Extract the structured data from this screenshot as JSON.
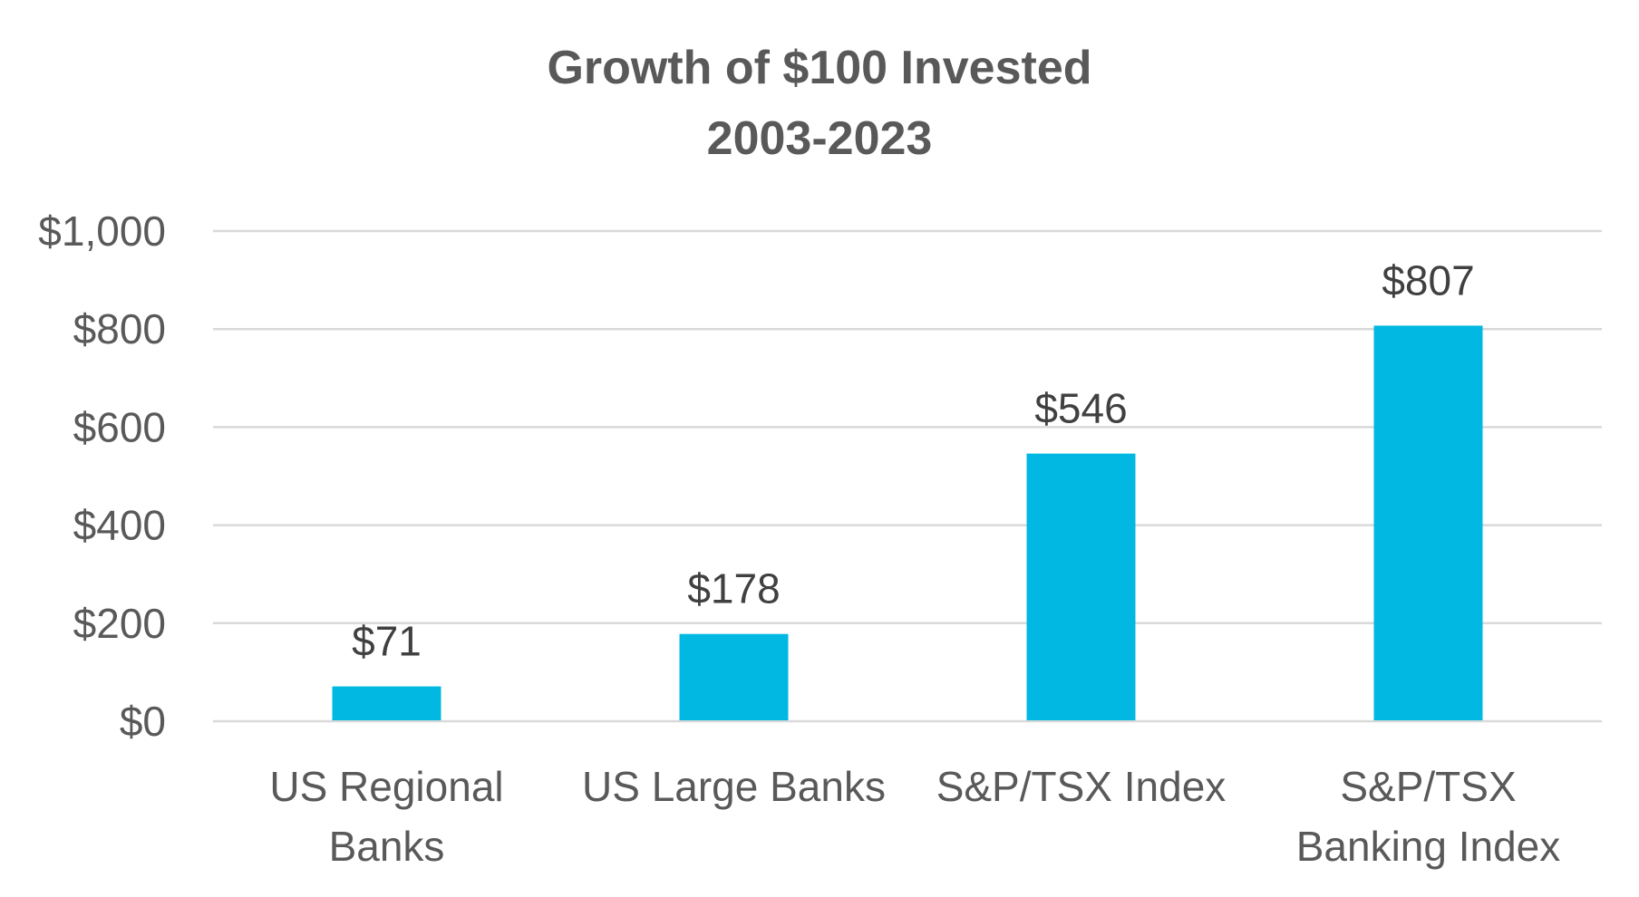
{
  "chart_data": {
    "type": "bar",
    "title": [
      "Growth of $100 Invested",
      "2003-2023"
    ],
    "categories": [
      [
        "US Regional",
        "Banks"
      ],
      [
        "US Large Banks"
      ],
      [
        "S&P/TSX Index"
      ],
      [
        "S&P/TSX",
        "Banking Index"
      ]
    ],
    "values": [
      71,
      178,
      546,
      807
    ],
    "data_labels": [
      "$71",
      "$178",
      "$546",
      "$807"
    ],
    "ylim": [
      0,
      1000
    ],
    "yticks": [
      0,
      200,
      400,
      600,
      800,
      1000
    ],
    "ytick_labels": [
      "$0",
      "$200",
      "$400",
      "$600",
      "$800",
      "$1,000"
    ],
    "grid": true,
    "xlabel": "",
    "ylabel": "",
    "colors": {
      "bar": "#00B8E1",
      "grid": "#D9D9D9"
    }
  }
}
